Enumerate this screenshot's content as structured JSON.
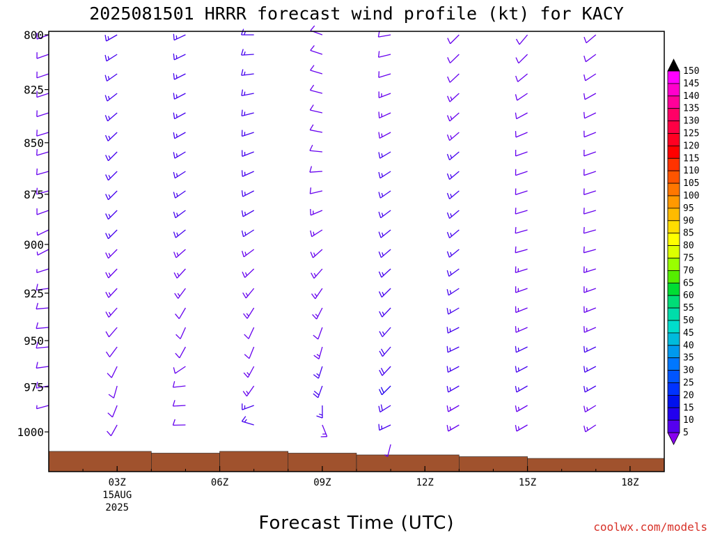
{
  "chart_data": {
    "type": "wind-barb-profile",
    "title": "2025081501 HRRR forecast wind profile (kt) for KACY",
    "xlabel": "Forecast Time (UTC)",
    "credit": "coolwx.com/models",
    "x_ticks": [
      {
        "hour": 3,
        "label": "03Z",
        "sub": [
          "15AUG",
          "2025"
        ]
      },
      {
        "hour": 6,
        "label": "06Z",
        "sub": []
      },
      {
        "hour": 9,
        "label": "09Z",
        "sub": []
      },
      {
        "hour": 12,
        "label": "12Z",
        "sub": []
      },
      {
        "hour": 15,
        "label": "15Z",
        "sub": []
      },
      {
        "hour": 18,
        "label": "18Z",
        "sub": []
      }
    ],
    "x_range_hours": [
      1,
      19
    ],
    "y_ticks": [
      {
        "p": 800,
        "label": "800"
      },
      {
        "p": 825,
        "label": "825"
      },
      {
        "p": 850,
        "label": "850"
      },
      {
        "p": 875,
        "label": "875"
      },
      {
        "p": 900,
        "label": "900"
      },
      {
        "p": 925,
        "label": "925"
      },
      {
        "p": 950,
        "label": "950"
      },
      {
        "p": 975,
        "label": "975"
      },
      {
        "p": 1000,
        "label": "1000"
      }
    ],
    "y_range_hPa": [
      800,
      1020
    ],
    "colorbar": {
      "labels": [
        "150",
        "145",
        "140",
        "135",
        "130",
        "125",
        "120",
        "115",
        "110",
        "105",
        "100",
        "95",
        "90",
        "85",
        "80",
        "75",
        "70",
        "65",
        "60",
        "55",
        "50",
        "45",
        "40",
        "35",
        "30",
        "25",
        "20",
        "15",
        "10",
        "5"
      ],
      "colors": [
        "#ff00ff",
        "#ff00cc",
        "#ff0099",
        "#ff0066",
        "#ff0044",
        "#ff0022",
        "#ff0000",
        "#ff3300",
        "#ff5500",
        "#ff7700",
        "#ff9900",
        "#ffbb00",
        "#ffdd00",
        "#ffff00",
        "#ddff00",
        "#99ff00",
        "#55ee00",
        "#00dd33",
        "#00dd77",
        "#00ddaa",
        "#00ddcc",
        "#00bbdd",
        "#0099ee",
        "#0077ff",
        "#0055ff",
        "#0033ff",
        "#0011ee",
        "#2200ee",
        "#5500ee",
        "#8800ee"
      ]
    },
    "series": [
      {
        "hour": 1,
        "surface_hPa": 1011,
        "profile": [
          {
            "p": 800,
            "dir": 250,
            "spd": 10
          },
          {
            "p": 875,
            "dir": 255,
            "spd": 8
          },
          {
            "p": 900,
            "dir": 240,
            "spd": 7
          },
          {
            "p": 925,
            "dir": 265,
            "spd": 8
          },
          {
            "p": 950,
            "dir": 265,
            "spd": 9
          },
          {
            "p": 975,
            "dir": 260,
            "spd": 8
          },
          {
            "p": 995,
            "dir": 250,
            "spd": 7
          }
        ]
      },
      {
        "hour": 3,
        "surface_hPa": 1011,
        "profile": [
          {
            "p": 800,
            "dir": 240,
            "spd": 15
          },
          {
            "p": 850,
            "dir": 225,
            "spd": 15
          },
          {
            "p": 900,
            "dir": 225,
            "spd": 15
          },
          {
            "p": 950,
            "dir": 220,
            "spd": 12
          },
          {
            "p": 975,
            "dir": 195,
            "spd": 8
          },
          {
            "p": 1005,
            "dir": 215,
            "spd": 10
          }
        ]
      },
      {
        "hour": 5,
        "surface_hPa": 1012,
        "profile": [
          {
            "p": 800,
            "dir": 245,
            "spd": 15
          },
          {
            "p": 850,
            "dir": 240,
            "spd": 15
          },
          {
            "p": 900,
            "dir": 230,
            "spd": 15
          },
          {
            "p": 950,
            "dir": 200,
            "spd": 10
          },
          {
            "p": 975,
            "dir": 265,
            "spd": 10
          },
          {
            "p": 1003,
            "dir": 270,
            "spd": 10
          }
        ]
      },
      {
        "hour": 7,
        "surface_hPa": 1011,
        "profile": [
          {
            "p": 800,
            "dir": 270,
            "spd": 15
          },
          {
            "p": 850,
            "dir": 250,
            "spd": 15
          },
          {
            "p": 900,
            "dir": 235,
            "spd": 15
          },
          {
            "p": 950,
            "dir": 200,
            "spd": 12
          },
          {
            "p": 975,
            "dir": 215,
            "spd": 15
          },
          {
            "p": 1000,
            "dir": 300,
            "spd": 15
          }
        ]
      },
      {
        "hour": 9,
        "surface_hPa": 1012,
        "profile": [
          {
            "p": 800,
            "dir": 290,
            "spd": 10
          },
          {
            "p": 850,
            "dir": 280,
            "spd": 10
          },
          {
            "p": 900,
            "dir": 230,
            "spd": 15
          },
          {
            "p": 950,
            "dir": 195,
            "spd": 12
          },
          {
            "p": 975,
            "dir": 200,
            "spd": 18
          },
          {
            "p": 1000,
            "dir": 150,
            "spd": 12
          }
        ]
      },
      {
        "hour": 11,
        "surface_hPa": 1013,
        "profile": [
          {
            "p": 800,
            "dir": 260,
            "spd": 10
          },
          {
            "p": 850,
            "dir": 240,
            "spd": 15
          },
          {
            "p": 900,
            "dir": 230,
            "spd": 15
          },
          {
            "p": 950,
            "dir": 220,
            "spd": 17
          },
          {
            "p": 975,
            "dir": 225,
            "spd": 22
          },
          {
            "p": 995,
            "dir": 250,
            "spd": 18
          },
          {
            "p": 1008,
            "dir": 190,
            "spd": 5
          }
        ]
      },
      {
        "hour": 13,
        "surface_hPa": 1014,
        "profile": [
          {
            "p": 800,
            "dir": 225,
            "spd": 10
          },
          {
            "p": 850,
            "dir": 230,
            "spd": 15
          },
          {
            "p": 900,
            "dir": 230,
            "spd": 15
          },
          {
            "p": 950,
            "dir": 245,
            "spd": 15
          },
          {
            "p": 975,
            "dir": 240,
            "spd": 15
          },
          {
            "p": 1000,
            "dir": 240,
            "spd": 13
          }
        ]
      },
      {
        "hour": 15,
        "surface_hPa": 1015,
        "profile": [
          {
            "p": 800,
            "dir": 220,
            "spd": 10
          },
          {
            "p": 850,
            "dir": 250,
            "spd": 10
          },
          {
            "p": 900,
            "dir": 255,
            "spd": 12
          },
          {
            "p": 950,
            "dir": 245,
            "spd": 15
          },
          {
            "p": 975,
            "dir": 240,
            "spd": 15
          },
          {
            "p": 1005,
            "dir": 240,
            "spd": 13
          }
        ]
      },
      {
        "hour": 17,
        "surface_hPa": 1015,
        "profile": [
          {
            "p": 800,
            "dir": 230,
            "spd": 10
          },
          {
            "p": 850,
            "dir": 250,
            "spd": 10
          },
          {
            "p": 900,
            "dir": 255,
            "spd": 12
          },
          {
            "p": 950,
            "dir": 245,
            "spd": 15
          },
          {
            "p": 975,
            "dir": 240,
            "spd": 15
          },
          {
            "p": 1005,
            "dir": 235,
            "spd": 13
          }
        ]
      }
    ],
    "terrain": [
      {
        "from": 1,
        "to": 4,
        "p": 1011
      },
      {
        "from": 4,
        "to": 6,
        "p": 1012
      },
      {
        "from": 6,
        "to": 8,
        "p": 1011
      },
      {
        "from": 8,
        "to": 10,
        "p": 1012
      },
      {
        "from": 10,
        "to": 13,
        "p": 1013
      },
      {
        "from": 13,
        "to": 15,
        "p": 1014
      },
      {
        "from": 15,
        "to": 19,
        "p": 1015
      }
    ],
    "terrain_color": "#a0522d",
    "barb_color": "#6600ee"
  }
}
